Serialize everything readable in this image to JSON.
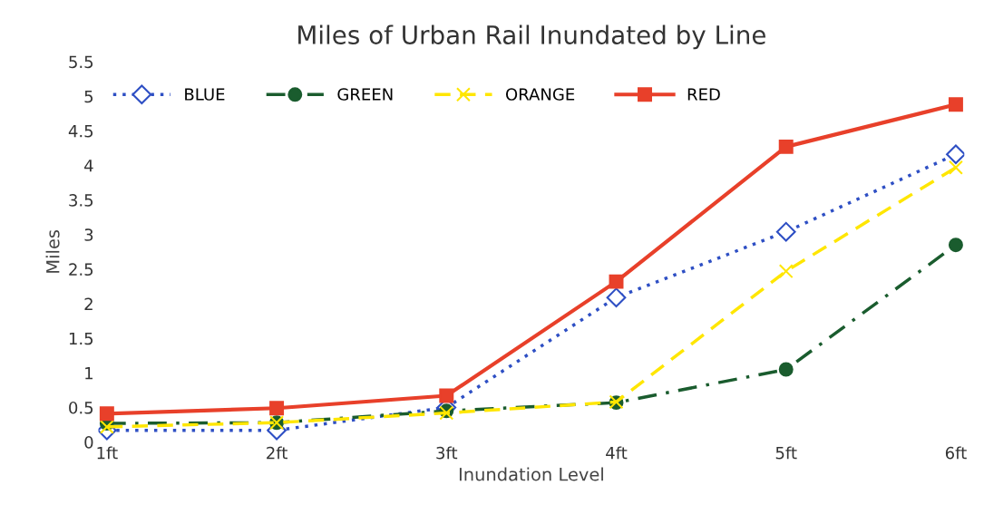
{
  "chart_data": {
    "type": "line",
    "title": "Miles of Urban Rail Inundated by Line",
    "xlabel": "Inundation Level",
    "ylabel": "Miles",
    "categories": [
      "1ft",
      "2ft",
      "3ft",
      "4ft",
      "5ft",
      "6ft"
    ],
    "ylim": [
      0,
      5.5
    ],
    "yticks": [
      0,
      0.5,
      1,
      1.5,
      2,
      2.5,
      3,
      3.5,
      4,
      4.5,
      5,
      5.5
    ],
    "grid": false,
    "legend": "top left",
    "series": [
      {
        "name": "BLUE",
        "color": "#2e4fc4",
        "marker": "diamond",
        "line_style": "dotted",
        "values": [
          0.17,
          0.17,
          0.5,
          2.09,
          3.04,
          4.16
        ]
      },
      {
        "name": "GREEN",
        "color": "#1a5c2e",
        "marker": "circle",
        "line_style": "dashdot",
        "values": [
          0.27,
          0.28,
          0.45,
          0.57,
          1.05,
          2.85
        ]
      },
      {
        "name": "ORANGE",
        "color": "#ffe600",
        "marker": "cross",
        "line_style": "dashed",
        "values": [
          0.22,
          0.28,
          0.42,
          0.58,
          2.47,
          3.97
        ]
      },
      {
        "name": "RED",
        "color": "#e8402a",
        "marker": "square",
        "line_style": "solid",
        "values": [
          0.41,
          0.49,
          0.67,
          2.32,
          4.27,
          4.88
        ]
      }
    ]
  }
}
